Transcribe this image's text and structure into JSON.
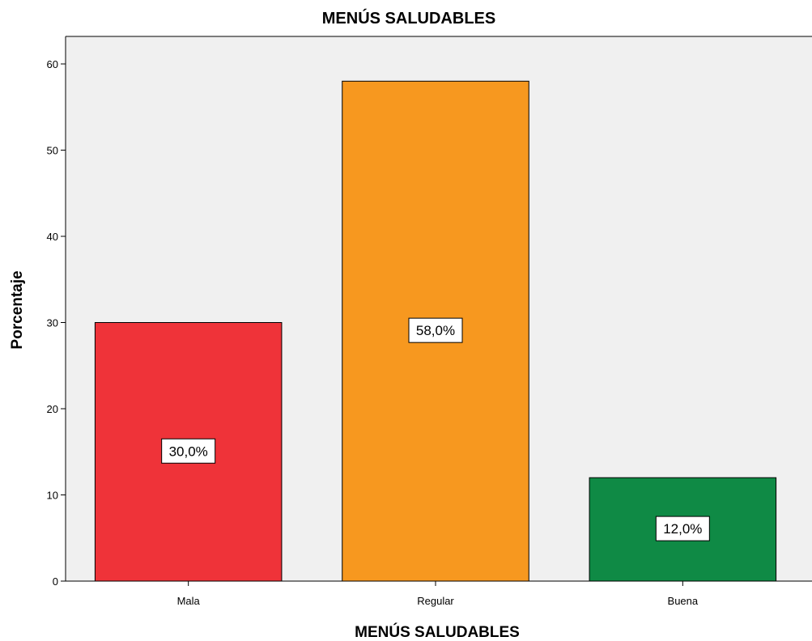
{
  "chart_data": {
    "type": "bar",
    "title": "MENÚS SALUDABLES",
    "xlabel": "MENÚS SALUDABLES",
    "ylabel": "Porcentaje",
    "categories": [
      "Mala",
      "Regular",
      "Buena"
    ],
    "values": [
      30.0,
      58.0,
      12.0
    ],
    "data_labels": [
      "30,0%",
      "58,0%",
      "12,0%"
    ],
    "colors": [
      "#ef3339",
      "#f7981f",
      "#0f8a45"
    ],
    "yticks": [
      0,
      10,
      20,
      30,
      40,
      50,
      60
    ],
    "ylim": [
      0,
      63
    ],
    "grid": false,
    "legend": "none",
    "plot_background": "#f0f0f0"
  }
}
